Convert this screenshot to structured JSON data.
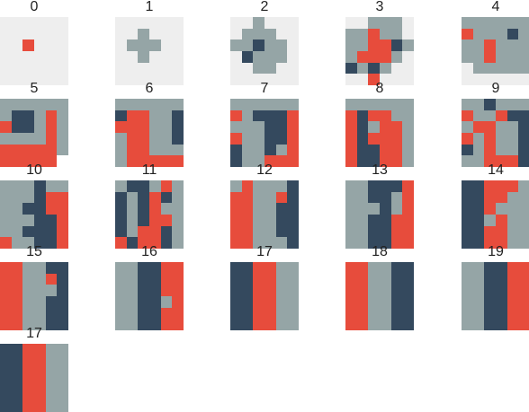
{
  "colors": {
    "background": "#ffffff",
    "empty": "#eeeeee",
    "gray": "#95a5a6",
    "navy": "#34495e",
    "red": "#e74c3c"
  },
  "legend_codes": {
    "E": "empty",
    "G": "gray",
    "N": "navy",
    "R": "red",
    "W": "background"
  },
  "panels": [
    {
      "label": "0",
      "grid": [
        "EEEEEE",
        "EEEEEE",
        "EEREEE",
        "EEEEEE",
        "EEEEEE",
        "EEEEEE"
      ]
    },
    {
      "label": "1",
      "grid": [
        "EEEEEE",
        "EEGEEE",
        "EGGGEE",
        "EEGEEE",
        "EEEEEE",
        "EEEEEE"
      ]
    },
    {
      "label": "2",
      "grid": [
        "EEGEEE",
        "EGGGEE",
        "GGNGGE",
        "ENGGGE",
        "EEGGEE",
        "EEEEEE"
      ]
    },
    {
      "label": "3",
      "grid": [
        "EEGGGE",
        "GGRGGE",
        "GGRRNG",
        "GRRRGE",
        "NGNGEE",
        "EEREEE"
      ]
    },
    {
      "label": "4",
      "grid": [
        "GGGGGG",
        "RGGGNG",
        "GGRGGG",
        "GGRGGG",
        "EGGGGG",
        "EEEEEE"
      ]
    },
    {
      "label": "5",
      "grid": [
        "GGGGGG",
        "GNNGRG",
        "RNNGRG",
        "GGGGRG",
        "RRRRRG",
        "RRRRRW"
      ]
    },
    {
      "label": "6",
      "grid": [
        "GGGGGG",
        "NRRGGN",
        "RRRGGN",
        "GRRGGN",
        "GRRGGG",
        "GRRRRR"
      ]
    },
    {
      "label": "7",
      "grid": [
        "GGGGGG",
        "RGNNNR",
        "GGGNNR",
        "RGGNNR",
        "NGGNGR",
        "NGGRRR"
      ]
    },
    {
      "label": "8",
      "grid": [
        "GGGGGG",
        "RNRRGG",
        "RNGRRG",
        "RNRRRG",
        "RNNRRG",
        "RNNRRG"
      ]
    },
    {
      "label": "9",
      "grid": [
        "GGNGGG",
        "RGGRNN",
        "GRRGGN",
        "RGRGGN",
        "NGRGGN",
        "GGRRRN"
      ]
    },
    {
      "label": "10",
      "grid": [
        "GGGNGG",
        "GGGNRR",
        "GGNNRR",
        "GGGNNR",
        "GGNNNR",
        "RGGNNR"
      ]
    },
    {
      "label": "11",
      "grid": [
        "GNNGRG",
        "NGNRNG",
        "NGNRGG",
        "NGNRRG",
        "NGRRNG",
        "RNRRNG"
      ]
    },
    {
      "label": "12",
      "grid": [
        "GRGGGN",
        "RRGGRN",
        "RRGGNN",
        "RRGGNN",
        "RRGGNN",
        "RRGGGN"
      ]
    },
    {
      "label": "13",
      "grid": [
        "GGNNNR",
        "GGNNGR",
        "GGGNGR",
        "GGNNRR",
        "GGNNRR",
        "GGNNRR"
      ]
    },
    {
      "label": "14",
      "grid": [
        "NNRRRG",
        "NNRRGG",
        "NNRGGG",
        "NNGRGG",
        "NNRRGG",
        "NNRRGG"
      ]
    },
    {
      "label": "15",
      "grid": [
        "RRGGNN",
        "RRGGRN",
        "RRGGGN",
        "RRGGNN",
        "RRGGNN",
        "RRGGNN"
      ]
    },
    {
      "label": "16",
      "grid": [
        "GGNNRR",
        "GGNNRR",
        "GGNNRR",
        "GGNNGR",
        "GGNNRR",
        "GGNNRR"
      ]
    },
    {
      "label": "17",
      "grid": [
        "NNRRGG",
        "NNRRGG",
        "NNRRGG",
        "NNRRGG",
        "NNRRGG",
        "NNRRGG"
      ]
    },
    {
      "label": "18",
      "grid": [
        "RRGGNN",
        "RRGGNN",
        "RRGGNN",
        "RRGGNN",
        "RRGGNN",
        "RRGGNN"
      ]
    },
    {
      "label": "19",
      "grid": [
        "GGNNRR",
        "GGNNRR",
        "GGNNRR",
        "GGNNRR",
        "GGNNRR",
        "GGNNRR"
      ]
    },
    {
      "label": "17",
      "grid": [
        "NNRRGG",
        "NNRRGG",
        "NNRRGG",
        "NNRRGG",
        "NNRRGG",
        "NNRRGG"
      ]
    }
  ]
}
